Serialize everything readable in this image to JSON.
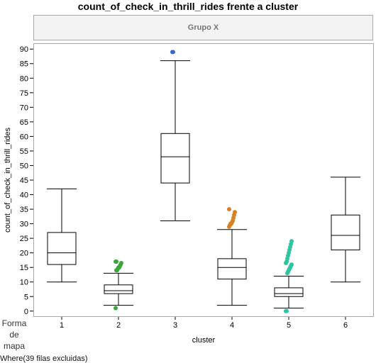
{
  "title": "count_of_check_in_thrill_rides frente a cluster",
  "group_header": "Grupo X",
  "map_shape_label": "Forma de mapa",
  "where_note": "Where(39 filas excluidas)",
  "chart_data": {
    "type": "box",
    "title": "count_of_check_in_thrill_rides frente a cluster",
    "xlabel": "cluster",
    "ylabel": "count_of_check_in_thrill_rides",
    "ylim": [
      -2,
      92
    ],
    "yticks": [
      0,
      5,
      10,
      15,
      20,
      25,
      30,
      35,
      40,
      45,
      50,
      55,
      60,
      65,
      70,
      75,
      80,
      85,
      90
    ],
    "categories": [
      "1",
      "2",
      "3",
      "4",
      "5",
      "6"
    ],
    "boxes": [
      {
        "category": "1",
        "whisker_low": 10,
        "q1": 16,
        "median": 20,
        "q3": 27,
        "whisker_high": 42,
        "outliers": [],
        "outlier_color": "#000000"
      },
      {
        "category": "2",
        "whisker_low": 2,
        "q1": 6,
        "median": 7,
        "q3": 9,
        "whisker_high": 13,
        "outliers": [
          1,
          14,
          14,
          14.5,
          15,
          15,
          15.5,
          16,
          16.5,
          17,
          17
        ],
        "outlier_color": "#3aa63a"
      },
      {
        "category": "3",
        "whisker_low": 31,
        "q1": 44,
        "median": 53,
        "q3": 61,
        "whisker_high": 86,
        "outliers": [
          89,
          89
        ],
        "outlier_color": "#3b66c7"
      },
      {
        "category": "4",
        "whisker_low": 2,
        "q1": 11,
        "median": 15,
        "q3": 18,
        "whisker_high": 28,
        "outliers": [
          29,
          29.5,
          30,
          30,
          30.5,
          31,
          32,
          33,
          34,
          35
        ],
        "outlier_color": "#d98024"
      },
      {
        "category": "5",
        "whisker_low": 1,
        "q1": 5,
        "median": 6,
        "q3": 8,
        "whisker_high": 12,
        "outliers": [
          0,
          0,
          13,
          13.5,
          14,
          14.5,
          15,
          15.5,
          16,
          16.5,
          17,
          18,
          19,
          20,
          21,
          22,
          23,
          24
        ],
        "outlier_color": "#2ec4a0"
      },
      {
        "category": "6",
        "whisker_low": 10,
        "q1": 21,
        "median": 26,
        "q3": 33,
        "whisker_high": 46,
        "outliers": [],
        "outlier_color": "#000000"
      }
    ]
  }
}
